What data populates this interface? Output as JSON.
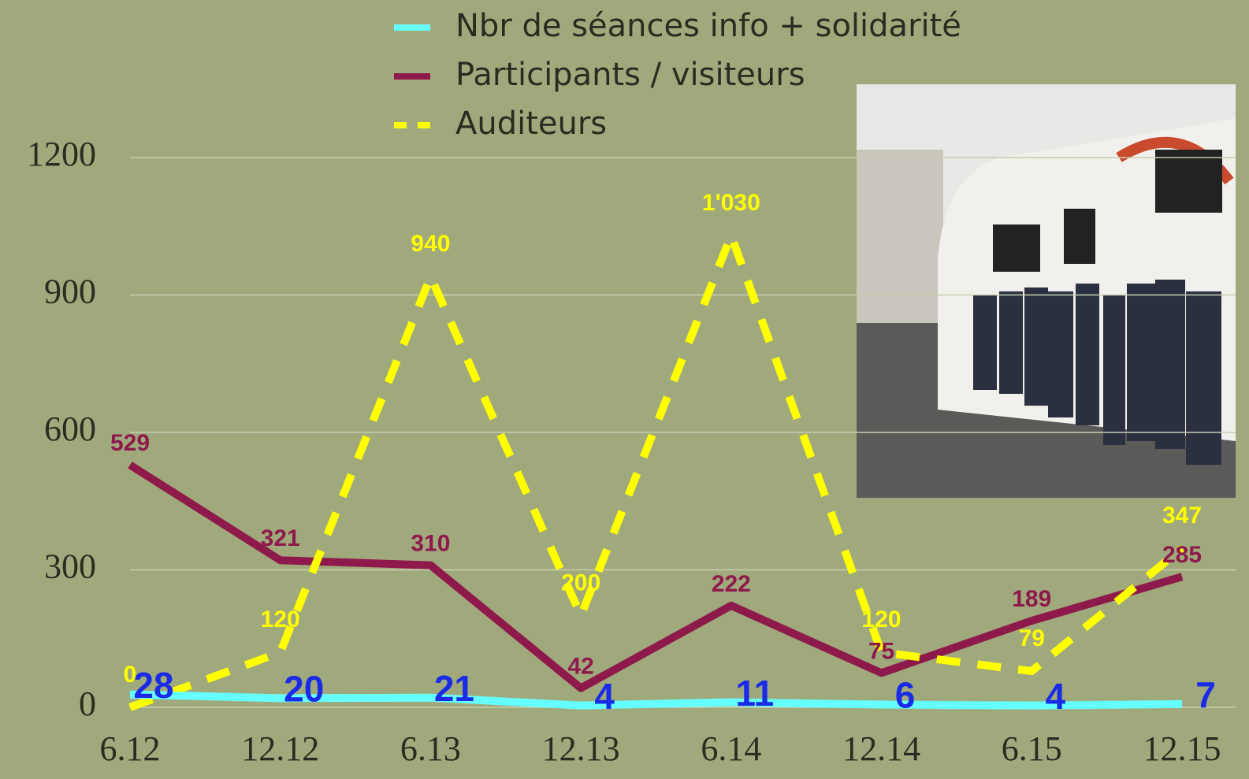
{
  "chart_data": {
    "type": "line",
    "categories": [
      "6.12",
      "12.12",
      "6.13",
      "12.13",
      "6.14",
      "12.14",
      "6.15",
      "12.15"
    ],
    "series": [
      {
        "name": "Nbr de séances info + solidarité",
        "color": "#66ffff",
        "label_color": "#1a2be8",
        "values": [
          28,
          20,
          21,
          4,
          11,
          6,
          4,
          7
        ]
      },
      {
        "name": "Participants / visiteurs",
        "color": "#8e1a4c",
        "label_color": "#8e1a4c",
        "values": [
          529,
          321,
          310,
          42,
          222,
          75,
          189,
          285
        ]
      },
      {
        "name": "Auditeurs",
        "color": "#ffff00",
        "label_color": "#ffff00",
        "dashed": true,
        "values": [
          0,
          120,
          940,
          200,
          1030,
          120,
          79,
          347
        ],
        "value_labels": [
          "0",
          "120",
          "940",
          "200",
          "1'030",
          "120",
          "79",
          "347"
        ]
      }
    ],
    "ylim": [
      0,
      1200
    ],
    "yticks": [
      0,
      300,
      600,
      900,
      1200
    ],
    "grid": true,
    "legend": "top"
  }
}
